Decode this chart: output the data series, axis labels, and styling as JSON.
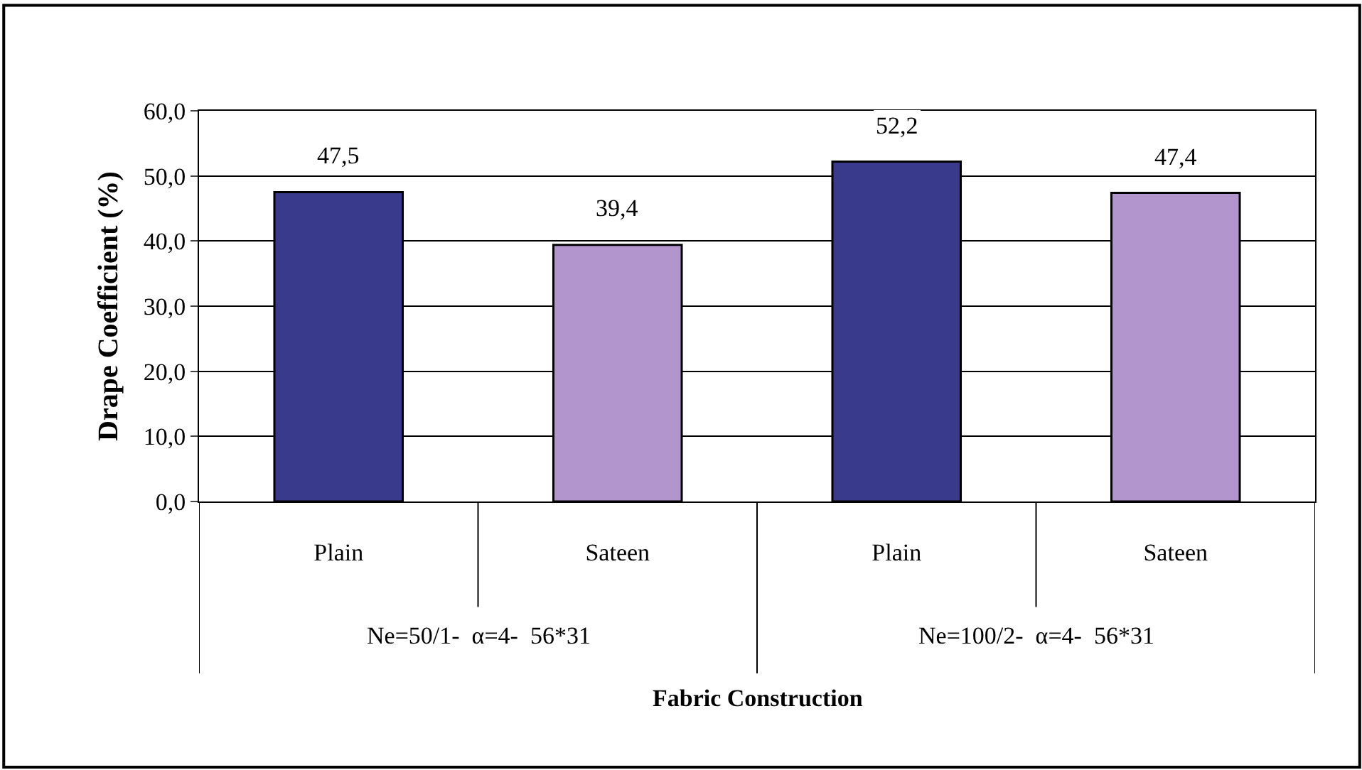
{
  "chart_data": {
    "type": "bar",
    "categories": [
      "Plain",
      "Sateen",
      "Plain",
      "Sateen"
    ],
    "values": [
      47.5,
      39.4,
      52.2,
      47.4
    ],
    "colors": [
      "#3a3a8c",
      "#b295cc",
      "#3a3a8c",
      "#b295cc"
    ],
    "value_labels": [
      "47,5",
      "39,4",
      "52,2",
      "47,4"
    ],
    "xlabel": "Fabric Construction",
    "ylabel": "Drape Coefficient (%)",
    "annotations": [
      "Ne=50/1-  α=4-  56*31",
      "Ne=100/2-  α=4-  56*31"
    ],
    "ylim": [
      0,
      60
    ],
    "yticks": [
      {
        "value": 0,
        "label": "0,0"
      },
      {
        "value": 10,
        "label": "10,0"
      },
      {
        "value": 20,
        "label": "20,0"
      },
      {
        "value": 30,
        "label": "30,0"
      },
      {
        "value": 40,
        "label": "40,0"
      },
      {
        "value": 50,
        "label": "50,0"
      },
      {
        "value": 60,
        "label": "60,0"
      }
    ],
    "grid": "y"
  }
}
